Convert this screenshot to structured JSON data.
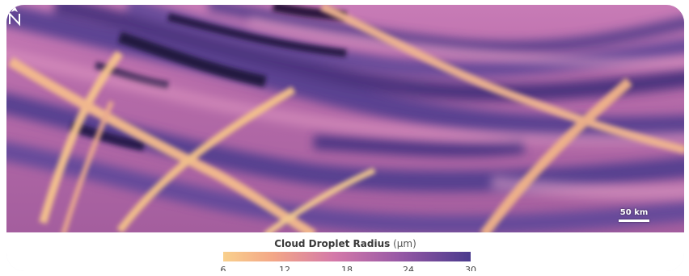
{
  "map": {
    "scale_bar_label": "50 km",
    "north_arrow": "north-arrow-icon",
    "colors": {
      "low": "#f9d08d",
      "mid_low": "#f3a787",
      "mid": "#d479a9",
      "mid_high": "#9a5aa6",
      "high": "#4a3a8d",
      "darkest": "#1f1237"
    }
  },
  "legend": {
    "title": "Cloud Droplet Radius",
    "unit": "(μm)",
    "ticks": [
      "6",
      "12",
      "18",
      "24",
      "30"
    ]
  }
}
